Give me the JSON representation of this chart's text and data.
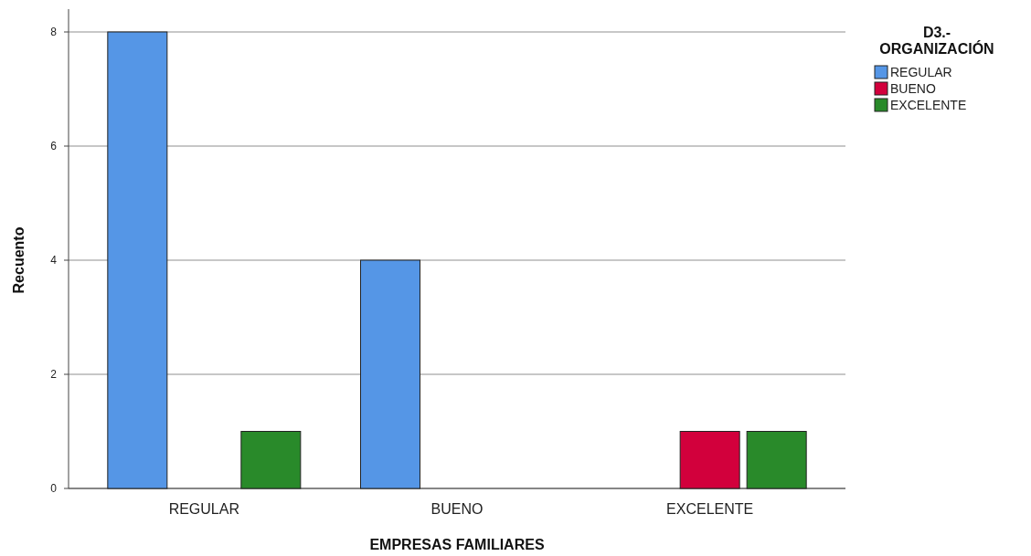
{
  "chart_data": {
    "type": "bar",
    "xlabel": "EMPRESAS FAMILIARES",
    "ylabel": "Recuento",
    "legend_title": "D3.-\nORGANIZACIÓN",
    "categories": [
      "REGULAR",
      "BUENO",
      "EXCELENTE"
    ],
    "series": [
      {
        "name": "REGULAR",
        "color": "#5596e6",
        "values": [
          8,
          4,
          null
        ]
      },
      {
        "name": "BUENO",
        "color": "#d2003c",
        "values": [
          null,
          null,
          1
        ]
      },
      {
        "name": "EXCELENTE",
        "color": "#298a2a",
        "values": [
          1,
          null,
          1
        ]
      }
    ],
    "ylim": [
      0,
      8
    ],
    "yticks": [
      0,
      2,
      4,
      6,
      8
    ],
    "grid": "y",
    "legend": "top right"
  }
}
